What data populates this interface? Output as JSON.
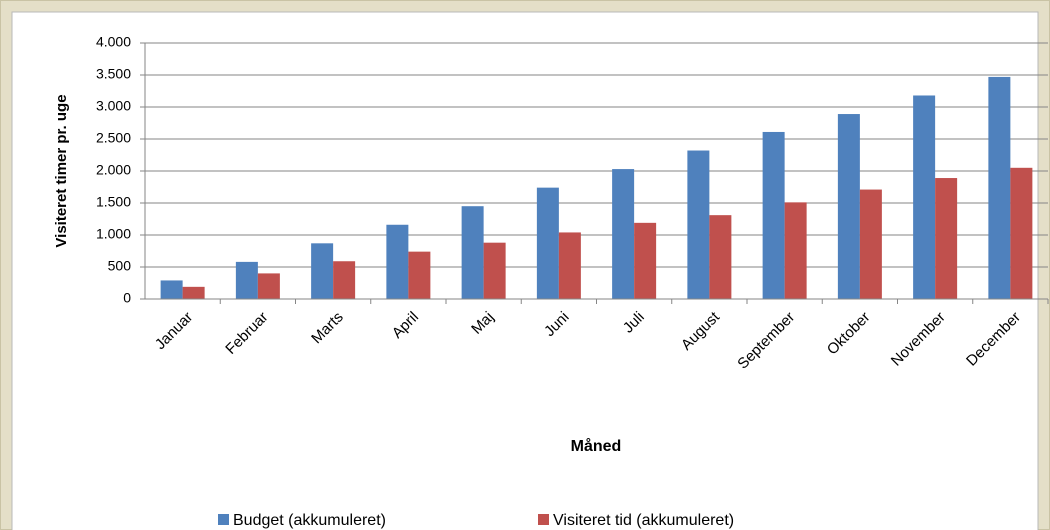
{
  "chart_data": {
    "type": "bar",
    "y_label": "Visiteret timer pr. uge",
    "x_label": "Måned",
    "categories": [
      "Januar",
      "Februar",
      "Marts",
      "April",
      "Maj",
      "Juni",
      "Juli",
      "August",
      "September",
      "Oktober",
      "November",
      "December"
    ],
    "series": [
      {
        "name": "Budget (akkumuleret)",
        "color": "#4f81bd",
        "values": [
          290,
          580,
          870,
          1160,
          1450,
          1740,
          2030,
          2320,
          2610,
          2890,
          3180,
          3470
        ]
      },
      {
        "name": "Visiteret tid (akkumuleret)",
        "color": "#c0504d",
        "values": [
          190,
          400,
          590,
          740,
          880,
          1040,
          1190,
          1310,
          1510,
          1710,
          1890,
          2050
        ]
      }
    ],
    "ylim": [
      0,
      4000
    ],
    "yticks": [
      0,
      500,
      {
        "value": 1000,
        "label": "1.000"
      },
      {
        "value": 1500,
        "label": "1.500"
      },
      {
        "value": 2000,
        "label": "2.000"
      },
      {
        "value": 2500,
        "label": "2.500"
      },
      {
        "value": 3000,
        "label": "3.000"
      },
      {
        "value": 3500,
        "label": "3.500"
      },
      {
        "value": 4000,
        "label": "4.000"
      }
    ],
    "grid": true,
    "legend": "bottom"
  }
}
